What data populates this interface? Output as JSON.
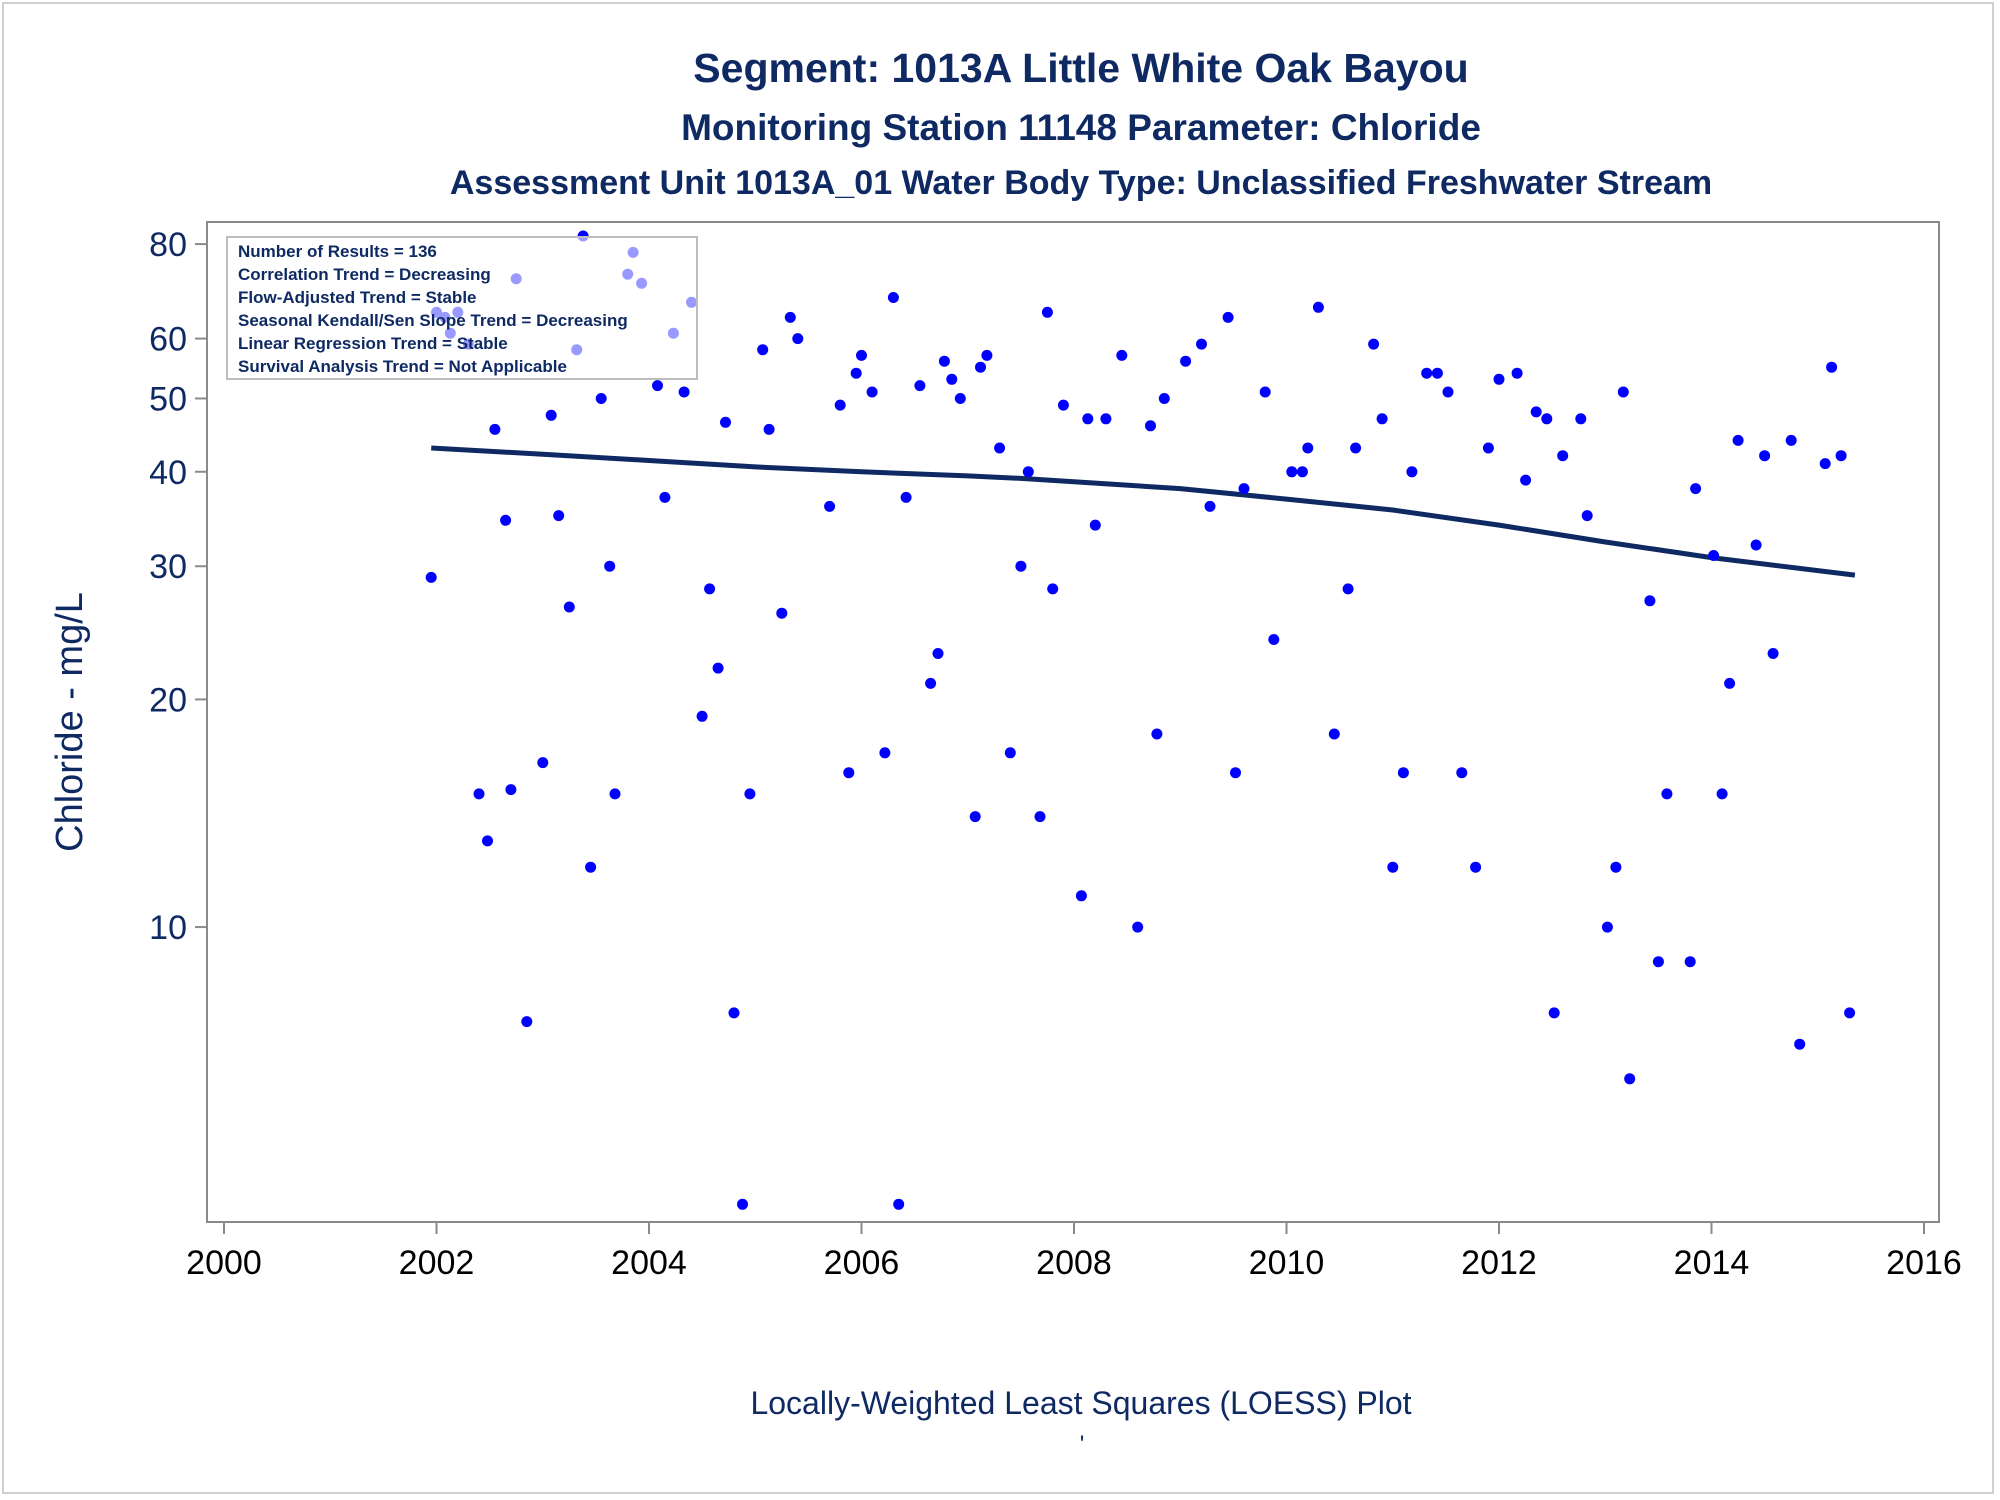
{
  "chart_data": {
    "type": "scatter",
    "title": "Segment: 1013A  Little White Oak Bayou",
    "subtitle": "Monitoring Station 11148 Parameter: Chloride",
    "subtitle2": "Assessment Unit 1013A_01   Water Body Type: Unclassified Freshwater Stream",
    "xlabel": "Locally-Weighted Least Squares (LOESS) Plot",
    "ylabel": "Chloride - mg/L",
    "footnote": "'",
    "xlim": [
      2000,
      2016
    ],
    "ylim": [
      4.2,
      83
    ],
    "yscale": "log",
    "x_ticks": [
      "2000",
      "2002",
      "2004",
      "2006",
      "2008",
      "2010",
      "2012",
      "2014",
      "2016"
    ],
    "y_ticks": [
      "10",
      "20",
      "30",
      "40",
      "50",
      "60",
      "80"
    ],
    "grid": false,
    "legend_position": "top-left",
    "annotations": [
      "Number of Results = 136",
      "Correlation Trend = Decreasing",
      "Flow-Adjusted Trend = Stable",
      "Seasonal Kendall/Sen Slope Trend = Decreasing",
      "Linear Regression Trend = Stable",
      "Survival Analysis Trend = Not Applicable"
    ],
    "colors": {
      "points": "#0000ff",
      "trend": "#0f2a63",
      "text": "#0f2a63"
    },
    "series": [
      {
        "type": "scatter",
        "points": [
          [
            2001.95,
            29
          ],
          [
            2002.0,
            65
          ],
          [
            2002.08,
            64
          ],
          [
            2002.13,
            61
          ],
          [
            2002.2,
            65
          ],
          [
            2002.3,
            59
          ],
          [
            2002.4,
            15
          ],
          [
            2002.48,
            13
          ],
          [
            2002.55,
            45.5
          ],
          [
            2002.65,
            34.5
          ],
          [
            2002.7,
            15.2
          ],
          [
            2002.75,
            72
          ],
          [
            2002.85,
            7.5
          ],
          [
            2003.0,
            16.5
          ],
          [
            2003.08,
            47.5
          ],
          [
            2003.15,
            35
          ],
          [
            2003.25,
            26.5
          ],
          [
            2003.32,
            58
          ],
          [
            2003.38,
            82
          ],
          [
            2003.45,
            12
          ],
          [
            2003.55,
            50
          ],
          [
            2003.63,
            30
          ],
          [
            2003.68,
            15
          ],
          [
            2003.8,
            73
          ],
          [
            2003.85,
            78
          ],
          [
            2003.93,
            71
          ],
          [
            2004.08,
            52
          ],
          [
            2004.15,
            37
          ],
          [
            2004.23,
            61
          ],
          [
            2004.33,
            51
          ],
          [
            2004.4,
            67
          ],
          [
            2004.5,
            19
          ],
          [
            2004.57,
            28
          ],
          [
            2004.65,
            22
          ],
          [
            2004.72,
            46.5
          ],
          [
            2004.8,
            7.7
          ],
          [
            2004.88,
            4.3
          ],
          [
            2004.95,
            15
          ],
          [
            2005.07,
            58
          ],
          [
            2005.13,
            45.5
          ],
          [
            2005.25,
            26
          ],
          [
            2005.33,
            64
          ],
          [
            2005.4,
            60
          ],
          [
            2005.7,
            36
          ],
          [
            2005.8,
            49
          ],
          [
            2005.88,
            16
          ],
          [
            2005.95,
            54
          ],
          [
            2006.0,
            57
          ],
          [
            2006.1,
            51
          ],
          [
            2006.22,
            17
          ],
          [
            2006.3,
            68
          ],
          [
            2006.35,
            4.3
          ],
          [
            2006.42,
            37
          ],
          [
            2006.55,
            52
          ],
          [
            2006.65,
            21
          ],
          [
            2006.72,
            23
          ],
          [
            2006.78,
            56
          ],
          [
            2006.85,
            53
          ],
          [
            2006.93,
            50
          ],
          [
            2007.07,
            14
          ],
          [
            2007.12,
            55
          ],
          [
            2007.18,
            57
          ],
          [
            2007.3,
            43
          ],
          [
            2007.4,
            17
          ],
          [
            2007.5,
            30
          ],
          [
            2007.57,
            40
          ],
          [
            2007.68,
            14
          ],
          [
            2007.75,
            65
          ],
          [
            2007.8,
            28
          ],
          [
            2007.9,
            49
          ],
          [
            2008.07,
            11
          ],
          [
            2008.13,
            47
          ],
          [
            2008.2,
            34
          ],
          [
            2008.3,
            47
          ],
          [
            2008.45,
            57
          ],
          [
            2008.6,
            10
          ],
          [
            2008.72,
            46
          ],
          [
            2008.78,
            18
          ],
          [
            2008.85,
            50
          ],
          [
            2009.05,
            56
          ],
          [
            2009.2,
            59
          ],
          [
            2009.28,
            36
          ],
          [
            2009.45,
            64
          ],
          [
            2009.52,
            16
          ],
          [
            2009.6,
            38
          ],
          [
            2009.8,
            51
          ],
          [
            2009.88,
            24
          ],
          [
            2010.05,
            40
          ],
          [
            2010.15,
            40
          ],
          [
            2010.2,
            43
          ],
          [
            2010.3,
            66
          ],
          [
            2010.45,
            18
          ],
          [
            2010.58,
            28
          ],
          [
            2010.65,
            43
          ],
          [
            2010.82,
            59
          ],
          [
            2010.9,
            47
          ],
          [
            2011.0,
            12
          ],
          [
            2011.1,
            16
          ],
          [
            2011.18,
            40
          ],
          [
            2011.32,
            54
          ],
          [
            2011.42,
            54
          ],
          [
            2011.52,
            51
          ],
          [
            2011.65,
            16
          ],
          [
            2011.78,
            12
          ],
          [
            2011.9,
            43
          ],
          [
            2012.0,
            53
          ],
          [
            2012.17,
            54
          ],
          [
            2012.25,
            39
          ],
          [
            2012.35,
            48
          ],
          [
            2012.45,
            47
          ],
          [
            2012.52,
            7.7
          ],
          [
            2012.6,
            42
          ],
          [
            2012.77,
            47
          ],
          [
            2012.83,
            35
          ],
          [
            2013.02,
            10
          ],
          [
            2013.1,
            12
          ],
          [
            2013.17,
            51
          ],
          [
            2013.23,
            6.3
          ],
          [
            2013.42,
            27
          ],
          [
            2013.5,
            9
          ],
          [
            2013.58,
            15
          ],
          [
            2013.8,
            9
          ],
          [
            2013.85,
            38
          ],
          [
            2014.02,
            31
          ],
          [
            2014.1,
            15
          ],
          [
            2014.17,
            21
          ],
          [
            2014.25,
            44
          ],
          [
            2014.42,
            32
          ],
          [
            2014.5,
            42
          ],
          [
            2014.58,
            23
          ],
          [
            2014.75,
            44
          ],
          [
            2014.83,
            7
          ],
          [
            2015.07,
            41
          ],
          [
            2015.13,
            55
          ],
          [
            2015.22,
            42
          ],
          [
            2015.3,
            7.7
          ]
        ]
      },
      {
        "type": "line",
        "points": [
          [
            2001.95,
            43
          ],
          [
            2003.0,
            42.2
          ],
          [
            2004.0,
            41.4
          ],
          [
            2005.0,
            40.6
          ],
          [
            2006.0,
            40.0
          ],
          [
            2007.0,
            39.5
          ],
          [
            2007.5,
            39.2
          ],
          [
            2008.0,
            38.8
          ],
          [
            2009.0,
            38.0
          ],
          [
            2010.0,
            36.8
          ],
          [
            2011.0,
            35.6
          ],
          [
            2012.0,
            34.0
          ],
          [
            2013.0,
            32.3
          ],
          [
            2014.0,
            30.8
          ],
          [
            2015.35,
            29.2
          ]
        ]
      }
    ]
  }
}
